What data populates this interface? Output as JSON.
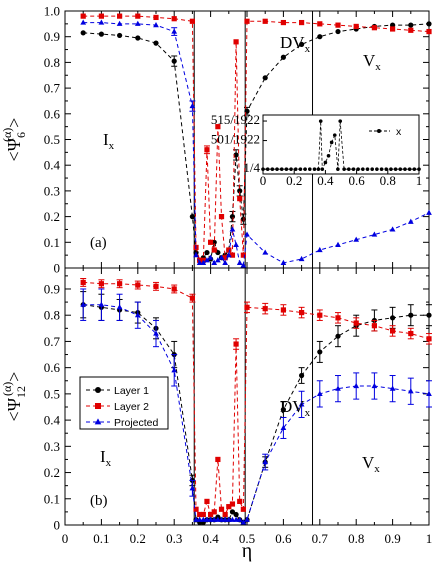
{
  "chart_data": [
    {
      "panel": "top",
      "type": "line",
      "panel_label": "(a)",
      "ylabel": "<Ψ6(α)>",
      "ylabel_main": "<Ψ",
      "ylabel_sub": "6",
      "ylabel_sup": "(α)",
      "ylabel_end": ">",
      "xlim": [
        0,
        1
      ],
      "ylim": [
        0,
        1
      ],
      "yticks": [
        "0",
        "0.1",
        "0.2",
        "0.3",
        "0.4",
        "0.5",
        "0.6",
        "0.7",
        "0.8",
        "0.9",
        "1.0"
      ],
      "vlines": [
        0.355,
        0.495,
        0.68
      ],
      "region_labels": [
        {
          "main": "I",
          "sub": "x"
        },
        {
          "main": "DV",
          "sub": "x"
        },
        {
          "main": "V",
          "sub": "x"
        }
      ],
      "series": [
        {
          "name": "Layer 1",
          "color": "#000000",
          "marker": "circle",
          "x": [
            0.05,
            0.1,
            0.15,
            0.2,
            0.25,
            0.3,
            0.35,
            0.36,
            0.37,
            0.38,
            0.39,
            0.4,
            0.41,
            0.42,
            0.43,
            0.44,
            0.45,
            0.46,
            0.47,
            0.48,
            0.49,
            0.5,
            0.55,
            0.6,
            0.65,
            0.7,
            0.75,
            0.8,
            0.85,
            0.9,
            0.95,
            1.0
          ],
          "y": [
            0.915,
            0.91,
            0.905,
            0.895,
            0.875,
            0.805,
            0.2,
            0.06,
            0.03,
            0.04,
            0.06,
            0.035,
            0.1,
            0.06,
            0.04,
            0.05,
            0.07,
            0.2,
            0.44,
            0.3,
            0.19,
            0.61,
            0.74,
            0.82,
            0.87,
            0.9,
            0.92,
            0.93,
            0.94,
            0.945,
            0.945,
            0.95
          ],
          "err": [
            0.01,
            0.01,
            0.01,
            0.01,
            0.012,
            0.02,
            0.01,
            0.01,
            0.01,
            0.01,
            0.01,
            0.01,
            0.01,
            0.01,
            0.01,
            0.01,
            0.01,
            0.02,
            0.02,
            0.02,
            0.02,
            0.015,
            0.01,
            0.01,
            0.01,
            0.01,
            0.01,
            0.01,
            0.01,
            0.01,
            0.01,
            0.01
          ]
        },
        {
          "name": "Layer 2",
          "color": "#e00000",
          "marker": "square",
          "x": [
            0.05,
            0.1,
            0.15,
            0.2,
            0.25,
            0.3,
            0.35,
            0.36,
            0.37,
            0.38,
            0.39,
            0.4,
            0.41,
            0.42,
            0.43,
            0.44,
            0.45,
            0.46,
            0.47,
            0.48,
            0.49,
            0.5,
            0.55,
            0.6,
            0.65,
            0.7,
            0.75,
            0.8,
            0.85,
            0.9,
            0.95,
            1.0
          ],
          "y": [
            0.98,
            0.98,
            0.98,
            0.98,
            0.975,
            0.97,
            0.96,
            0.08,
            0.03,
            0.03,
            0.46,
            0.1,
            0.07,
            0.55,
            0.2,
            0.04,
            0.07,
            0.05,
            0.88,
            0.27,
            0.05,
            0.96,
            0.96,
            0.955,
            0.955,
            0.95,
            0.945,
            0.94,
            0.935,
            0.93,
            0.925,
            0.92
          ],
          "err": [
            0.005,
            0.005,
            0.005,
            0.005,
            0.005,
            0.005,
            0.005,
            0.01,
            0.01,
            0.01,
            0.015,
            0.01,
            0.01,
            0.01,
            0.01,
            0.01,
            0.01,
            0.01,
            0.01,
            0.01,
            0.01,
            0.005,
            0.005,
            0.005,
            0.005,
            0.005,
            0.005,
            0.005,
            0.005,
            0.005,
            0.005,
            0.005
          ]
        },
        {
          "name": "Projected",
          "color": "#0000e0",
          "marker": "triangle",
          "x": [
            0.05,
            0.1,
            0.15,
            0.2,
            0.25,
            0.3,
            0.35,
            0.36,
            0.37,
            0.38,
            0.39,
            0.4,
            0.41,
            0.42,
            0.43,
            0.44,
            0.45,
            0.46,
            0.47,
            0.48,
            0.49,
            0.5,
            0.55,
            0.6,
            0.65,
            0.7,
            0.75,
            0.8,
            0.85,
            0.9,
            0.95,
            1.0
          ],
          "y": [
            0.955,
            0.955,
            0.95,
            0.95,
            0.945,
            0.92,
            0.63,
            0.05,
            0.02,
            0.02,
            0.03,
            0.04,
            0.02,
            0.03,
            0.04,
            0.02,
            0.05,
            0.15,
            0.09,
            0.02,
            0.01,
            0.13,
            0.06,
            0.02,
            0.035,
            0.07,
            0.09,
            0.11,
            0.13,
            0.15,
            0.18,
            0.215
          ],
          "err": [
            0.01,
            0.01,
            0.01,
            0.01,
            0.01,
            0.015,
            0.02,
            0.01,
            0.01,
            0.01,
            0.01,
            0.01,
            0.01,
            0.01,
            0.01,
            0.01,
            0.01,
            0.01,
            0.01,
            0.01,
            0.01,
            0.01,
            0.01,
            0.01,
            0.01,
            0.01,
            0.01,
            0.01,
            0.01,
            0.01,
            0.01,
            0.01
          ]
        }
      ],
      "inset": {
        "type": "line",
        "legend": "x",
        "xlim": [
          0,
          1
        ],
        "xticks": [
          "0",
          "0.2",
          "0.4",
          "0.6",
          "0.8",
          "1"
        ],
        "yticks": [
          "1/4",
          "501/1922",
          "515/1922"
        ],
        "x": [
          0.0,
          0.03,
          0.06,
          0.09,
          0.12,
          0.15,
          0.18,
          0.21,
          0.24,
          0.27,
          0.3,
          0.33,
          0.355,
          0.37,
          0.38,
          0.4,
          0.42,
          0.44,
          0.46,
          0.48,
          0.495,
          0.52,
          0.55,
          0.58,
          0.61,
          0.64,
          0.67,
          0.7,
          0.73,
          0.76,
          0.79,
          0.82,
          0.85,
          0.88,
          0.91,
          0.94,
          0.97,
          1.0
        ],
        "y": [
          0.25,
          0.25,
          0.25,
          0.25,
          0.25,
          0.25,
          0.25,
          0.25,
          0.25,
          0.25,
          0.25,
          0.25,
          0.25,
          0.2679,
          0.25,
          0.2525,
          0.255,
          0.26,
          0.2627,
          0.25,
          0.2679,
          0.25,
          0.25,
          0.25,
          0.25,
          0.25,
          0.25,
          0.25,
          0.25,
          0.25,
          0.25,
          0.25,
          0.25,
          0.25,
          0.25,
          0.25,
          0.25,
          0.25
        ]
      }
    },
    {
      "panel": "bottom",
      "type": "line",
      "panel_label": "(b)",
      "ylabel": "<Ψ12(α)>",
      "ylabel_main": "<Ψ",
      "ylabel_sub": "12",
      "ylabel_sup": "(α)",
      "ylabel_end": ">",
      "xlabel": "η",
      "xlim": [
        0,
        1
      ],
      "ylim": [
        0,
        0.98
      ],
      "xticks": [
        "0",
        "0.1",
        "0.2",
        "0.3",
        "0.4",
        "0.5",
        "0.6",
        "0.7",
        "0.8",
        "0.9",
        "1"
      ],
      "yticks": [
        "0",
        "0.1",
        "0.2",
        "0.3",
        "0.4",
        "0.5",
        "0.6",
        "0.7",
        "0.8",
        "0.9"
      ],
      "vlines": [
        0.355,
        0.495,
        0.68
      ],
      "region_labels": [
        {
          "main": "I",
          "sub": "x"
        },
        {
          "main": "DV",
          "sub": "x"
        },
        {
          "main": "V",
          "sub": "x"
        }
      ],
      "legend_position": "left-center",
      "series": [
        {
          "name": "Layer 1",
          "color": "#000000",
          "marker": "circle",
          "x": [
            0.05,
            0.1,
            0.15,
            0.2,
            0.25,
            0.3,
            0.35,
            0.36,
            0.37,
            0.38,
            0.39,
            0.4,
            0.41,
            0.42,
            0.43,
            0.44,
            0.45,
            0.46,
            0.47,
            0.48,
            0.49,
            0.5,
            0.55,
            0.6,
            0.65,
            0.7,
            0.75,
            0.8,
            0.85,
            0.9,
            0.95,
            1.0
          ],
          "y": [
            0.84,
            0.83,
            0.82,
            0.81,
            0.75,
            0.65,
            0.17,
            0.02,
            0.01,
            0.01,
            0.02,
            0.02,
            0.02,
            0.03,
            0.02,
            0.02,
            0.02,
            0.05,
            0.04,
            0.02,
            0.01,
            0.02,
            0.24,
            0.44,
            0.57,
            0.66,
            0.72,
            0.76,
            0.78,
            0.79,
            0.8,
            0.8
          ],
          "err": [
            0.05,
            0.05,
            0.04,
            0.04,
            0.04,
            0.05,
            0.02,
            0.01,
            0.01,
            0.01,
            0.01,
            0.01,
            0.01,
            0.01,
            0.01,
            0.01,
            0.01,
            0.01,
            0.01,
            0.01,
            0.01,
            0.01,
            0.02,
            0.03,
            0.03,
            0.04,
            0.04,
            0.04,
            0.04,
            0.04,
            0.04,
            0.04
          ]
        },
        {
          "name": "Layer 2",
          "color": "#e00000",
          "marker": "square",
          "x": [
            0.05,
            0.1,
            0.15,
            0.2,
            0.25,
            0.3,
            0.35,
            0.36,
            0.37,
            0.38,
            0.39,
            0.4,
            0.41,
            0.42,
            0.43,
            0.44,
            0.45,
            0.46,
            0.47,
            0.48,
            0.49,
            0.5,
            0.55,
            0.6,
            0.65,
            0.7,
            0.75,
            0.8,
            0.85,
            0.9,
            0.95,
            1.0
          ],
          "y": [
            0.925,
            0.92,
            0.92,
            0.915,
            0.91,
            0.9,
            0.865,
            0.06,
            0.04,
            0.04,
            0.09,
            0.04,
            0.05,
            0.25,
            0.06,
            0.04,
            0.07,
            0.08,
            0.69,
            0.09,
            0.06,
            0.83,
            0.825,
            0.82,
            0.81,
            0.8,
            0.79,
            0.77,
            0.76,
            0.74,
            0.73,
            0.71
          ],
          "err": [
            0.015,
            0.015,
            0.015,
            0.015,
            0.015,
            0.015,
            0.015,
            0.01,
            0.01,
            0.01,
            0.01,
            0.01,
            0.01,
            0.01,
            0.01,
            0.01,
            0.01,
            0.01,
            0.02,
            0.01,
            0.01,
            0.02,
            0.02,
            0.02,
            0.02,
            0.02,
            0.02,
            0.02,
            0.02,
            0.02,
            0.02,
            0.02
          ]
        },
        {
          "name": "Projected",
          "color": "#0000e0",
          "marker": "triangle",
          "x": [
            0.05,
            0.1,
            0.15,
            0.2,
            0.25,
            0.3,
            0.35,
            0.36,
            0.37,
            0.38,
            0.39,
            0.4,
            0.41,
            0.42,
            0.43,
            0.44,
            0.45,
            0.46,
            0.47,
            0.48,
            0.49,
            0.5,
            0.55,
            0.6,
            0.65,
            0.7,
            0.75,
            0.8,
            0.85,
            0.9,
            0.95,
            1.0
          ],
          "y": [
            0.84,
            0.84,
            0.83,
            0.8,
            0.73,
            0.59,
            0.14,
            0.02,
            0.02,
            0.02,
            0.02,
            0.02,
            0.02,
            0.02,
            0.02,
            0.02,
            0.02,
            0.02,
            0.02,
            0.02,
            0.01,
            0.02,
            0.24,
            0.37,
            0.46,
            0.5,
            0.52,
            0.53,
            0.53,
            0.52,
            0.51,
            0.5
          ],
          "err": [
            0.06,
            0.06,
            0.05,
            0.05,
            0.05,
            0.06,
            0.03,
            0.01,
            0.01,
            0.01,
            0.01,
            0.01,
            0.01,
            0.01,
            0.01,
            0.01,
            0.01,
            0.01,
            0.01,
            0.01,
            0.01,
            0.01,
            0.03,
            0.04,
            0.05,
            0.05,
            0.05,
            0.05,
            0.05,
            0.05,
            0.05,
            0.05
          ]
        }
      ]
    }
  ]
}
